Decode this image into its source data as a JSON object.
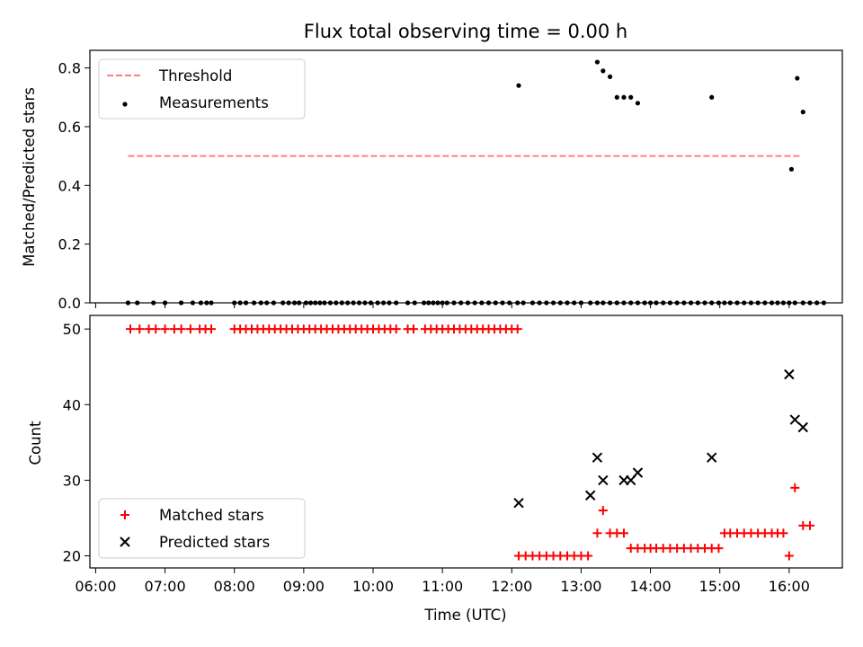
{
  "chart_data": [
    {
      "type": "scatter",
      "title": "Flux total observing time = 0.00 h",
      "xlabel": "",
      "ylabel": "Matched/Predicted stars",
      "xlim": [
        "05:55",
        "16:46"
      ],
      "ylim": [
        0,
        0.86
      ],
      "yticks": [
        "0.0",
        "0.2",
        "0.4",
        "0.6",
        "0.8"
      ],
      "ytick_values": [
        0,
        0.2,
        0.4,
        0.6,
        0.8
      ],
      "legend_position": "upper-left",
      "series": [
        {
          "name": "Threshold",
          "kind": "line",
          "style": "dashed",
          "color": "#ff7f7f",
          "x": [
            "06:28",
            "16:11"
          ],
          "y": [
            0.5,
            0.5
          ]
        },
        {
          "name": "Measurements",
          "kind": "points",
          "color": "#000000",
          "x": [
            "06:28",
            "06:36",
            "06:50",
            "07:00",
            "07:14",
            "07:24",
            "07:31",
            "07:36",
            "07:40",
            "08:00",
            "08:05",
            "08:10",
            "08:17",
            "08:23",
            "08:28",
            "08:34",
            "08:42",
            "08:47",
            "08:52",
            "08:56",
            "09:02",
            "09:06",
            "09:10",
            "09:14",
            "09:18",
            "09:23",
            "09:28",
            "09:33",
            "09:38",
            "09:43",
            "09:48",
            "09:53",
            "09:58",
            "10:04",
            "10:09",
            "10:14",
            "10:20",
            "10:30",
            "10:36",
            "10:44",
            "10:48",
            "10:52",
            "10:56",
            "11:00",
            "11:04",
            "11:10",
            "11:16",
            "11:22",
            "11:28",
            "11:34",
            "11:40",
            "11:46",
            "11:52",
            "11:58",
            "12:05",
            "12:10",
            "12:18",
            "12:24",
            "12:30",
            "12:36",
            "12:42",
            "12:48",
            "12:54",
            "13:00",
            "13:08",
            "13:14",
            "13:19",
            "13:25",
            "13:31",
            "13:37",
            "13:43",
            "13:49",
            "13:55",
            "14:00",
            "14:05",
            "14:11",
            "14:17",
            "14:23",
            "14:29",
            "14:35",
            "14:41",
            "14:47",
            "14:53",
            "14:59",
            "15:04",
            "15:09",
            "15:15",
            "15:21",
            "15:27",
            "15:33",
            "15:39",
            "15:45",
            "15:50",
            "15:55",
            "16:00",
            "16:05",
            "16:12",
            "16:18",
            "16:24",
            "16:30",
            "13:14",
            "13:19",
            "13:25",
            "13:31",
            "13:37",
            "13:43",
            "13:49",
            "12:06",
            "14:53",
            "16:02",
            "16:07",
            "16:12"
          ],
          "y": [
            0,
            0,
            0,
            0,
            0,
            0,
            0,
            0,
            0,
            0,
            0,
            0,
            0,
            0,
            0,
            0,
            0,
            0,
            0,
            0,
            0,
            0,
            0,
            0,
            0,
            0,
            0,
            0,
            0,
            0,
            0,
            0,
            0,
            0,
            0,
            0,
            0,
            0,
            0,
            0,
            0,
            0,
            0,
            0,
            0,
            0,
            0,
            0,
            0,
            0,
            0,
            0,
            0,
            0,
            0,
            0,
            0,
            0,
            0,
            0,
            0,
            0,
            0,
            0,
            0,
            0,
            0,
            0,
            0,
            0,
            0,
            0,
            0,
            0,
            0,
            0,
            0,
            0,
            0,
            0,
            0,
            0,
            0,
            0,
            0,
            0,
            0,
            0,
            0,
            0,
            0,
            0,
            0,
            0,
            0,
            0,
            0,
            0,
            0,
            0,
            0.82,
            0.79,
            0.77,
            0.7,
            0.7,
            0.7,
            0.68,
            0.74,
            0.7,
            0.455,
            0.765,
            0.65
          ]
        }
      ]
    },
    {
      "type": "scatter",
      "title": "",
      "xlabel": "Time (UTC)",
      "ylabel": "Count",
      "xlim": [
        "05:55",
        "16:46"
      ],
      "ylim": [
        18.4,
        51.8
      ],
      "xticks": [
        "06:00",
        "07:00",
        "08:00",
        "09:00",
        "10:00",
        "11:00",
        "12:00",
        "13:00",
        "14:00",
        "15:00",
        "16:00"
      ],
      "yticks": [
        "20",
        "30",
        "40",
        "50"
      ],
      "ytick_values": [
        20,
        30,
        40,
        50
      ],
      "legend_position": "lower-left",
      "series": [
        {
          "name": "Matched stars",
          "marker": "plus",
          "color": "#ff0000",
          "x": [
            "06:30",
            "06:38",
            "06:46",
            "06:52",
            "07:00",
            "07:08",
            "07:14",
            "07:22",
            "07:30",
            "07:35",
            "07:40",
            "08:00",
            "08:05",
            "08:10",
            "08:15",
            "08:20",
            "08:25",
            "08:30",
            "08:35",
            "08:40",
            "08:45",
            "08:50",
            "08:55",
            "09:00",
            "09:05",
            "09:10",
            "09:15",
            "09:20",
            "09:25",
            "09:30",
            "09:35",
            "09:40",
            "09:45",
            "09:50",
            "09:55",
            "10:00",
            "10:05",
            "10:10",
            "10:15",
            "10:20",
            "10:30",
            "10:35",
            "10:45",
            "10:50",
            "10:55",
            "11:00",
            "11:05",
            "11:10",
            "11:15",
            "11:20",
            "11:25",
            "11:30",
            "11:35",
            "11:40",
            "11:45",
            "11:50",
            "11:55",
            "12:00",
            "12:05",
            "12:06",
            "12:12",
            "12:18",
            "12:24",
            "12:30",
            "12:36",
            "12:42",
            "12:48",
            "12:54",
            "13:00",
            "13:06",
            "13:14",
            "13:19",
            "13:25",
            "13:31",
            "13:37",
            "13:43",
            "13:49",
            "13:55",
            "14:00",
            "14:05",
            "14:11",
            "14:17",
            "14:23",
            "14:29",
            "14:35",
            "14:41",
            "14:47",
            "14:53",
            "14:59",
            "15:04",
            "15:09",
            "15:15",
            "15:21",
            "15:27",
            "15:33",
            "15:39",
            "15:45",
            "15:50",
            "15:55",
            "16:00",
            "16:05",
            "16:12",
            "16:18"
          ],
          "y": [
            50,
            50,
            50,
            50,
            50,
            50,
            50,
            50,
            50,
            50,
            50,
            50,
            50,
            50,
            50,
            50,
            50,
            50,
            50,
            50,
            50,
            50,
            50,
            50,
            50,
            50,
            50,
            50,
            50,
            50,
            50,
            50,
            50,
            50,
            50,
            50,
            50,
            50,
            50,
            50,
            50,
            50,
            50,
            50,
            50,
            50,
            50,
            50,
            50,
            50,
            50,
            50,
            50,
            50,
            50,
            50,
            50,
            50,
            50,
            20,
            20,
            20,
            20,
            20,
            20,
            20,
            20,
            20,
            20,
            20,
            23,
            26,
            23,
            23,
            23,
            21,
            21,
            21,
            21,
            21,
            21,
            21,
            21,
            21,
            21,
            21,
            21,
            21,
            21,
            23,
            23,
            23,
            23,
            23,
            23,
            23,
            23,
            23,
            23,
            20,
            29,
            24,
            24
          ]
        },
        {
          "name": "Predicted stars",
          "marker": "x",
          "color": "#000000",
          "x": [
            "12:06",
            "13:08",
            "13:14",
            "13:19",
            "13:37",
            "13:43",
            "13:49",
            "14:53",
            "16:00",
            "16:05",
            "16:12"
          ],
          "y": [
            27,
            28,
            33,
            30,
            30,
            30,
            31,
            33,
            44,
            38,
            37
          ]
        }
      ]
    }
  ]
}
